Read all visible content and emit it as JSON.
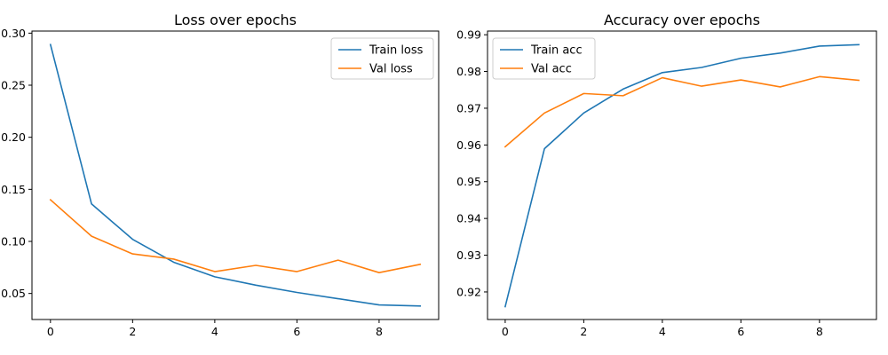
{
  "chart_data": [
    {
      "type": "line",
      "title": "Loss over epochs",
      "xlabel": "",
      "ylabel": "",
      "x": [
        0,
        1,
        2,
        3,
        4,
        5,
        6,
        7,
        8,
        9
      ],
      "xlim": [
        -0.45,
        9.45
      ],
      "ylim": [
        0.025,
        0.302
      ],
      "xticks": [
        0,
        2,
        4,
        6,
        8
      ],
      "xtick_labels": [
        "0",
        "2",
        "4",
        "6",
        "8"
      ],
      "yticks": [
        0.05,
        0.1,
        0.15,
        0.2,
        0.25,
        0.3
      ],
      "ytick_labels": [
        "0.05",
        "0.10",
        "0.15",
        "0.20",
        "0.25",
        "0.30"
      ],
      "grid": false,
      "legend_position": "top-right",
      "series": [
        {
          "name": "Train loss",
          "color": "#1f77b4",
          "values": [
            0.289,
            0.136,
            0.102,
            0.08,
            0.066,
            0.058,
            0.051,
            0.045,
            0.039,
            0.038
          ]
        },
        {
          "name": "Val loss",
          "color": "#ff7f0e",
          "values": [
            0.14,
            0.105,
            0.088,
            0.083,
            0.071,
            0.077,
            0.071,
            0.082,
            0.07,
            0.078
          ]
        }
      ]
    },
    {
      "type": "line",
      "title": "Accuracy over epochs",
      "xlabel": "",
      "ylabel": "",
      "x": [
        0,
        1,
        2,
        3,
        4,
        5,
        6,
        7,
        8,
        9
      ],
      "xlim": [
        -0.45,
        9.45
      ],
      "ylim": [
        0.9125,
        0.991
      ],
      "xticks": [
        0,
        2,
        4,
        6,
        8
      ],
      "xtick_labels": [
        "0",
        "2",
        "4",
        "6",
        "8"
      ],
      "yticks": [
        0.92,
        0.93,
        0.94,
        0.95,
        0.96,
        0.97,
        0.98,
        0.99
      ],
      "ytick_labels": [
        "0.92",
        "0.93",
        "0.94",
        "0.95",
        "0.96",
        "0.97",
        "0.98",
        "0.99"
      ],
      "grid": false,
      "legend_position": "top-left",
      "series": [
        {
          "name": "Train acc",
          "color": "#1f77b4",
          "values": [
            0.916,
            0.959,
            0.9687,
            0.9752,
            0.9797,
            0.9811,
            0.9836,
            0.985,
            0.9869,
            0.9873
          ]
        },
        {
          "name": "Val acc",
          "color": "#ff7f0e",
          "values": [
            0.9595,
            0.9687,
            0.974,
            0.9734,
            0.9783,
            0.976,
            0.9777,
            0.9758,
            0.9786,
            0.9776
          ]
        }
      ]
    }
  ]
}
